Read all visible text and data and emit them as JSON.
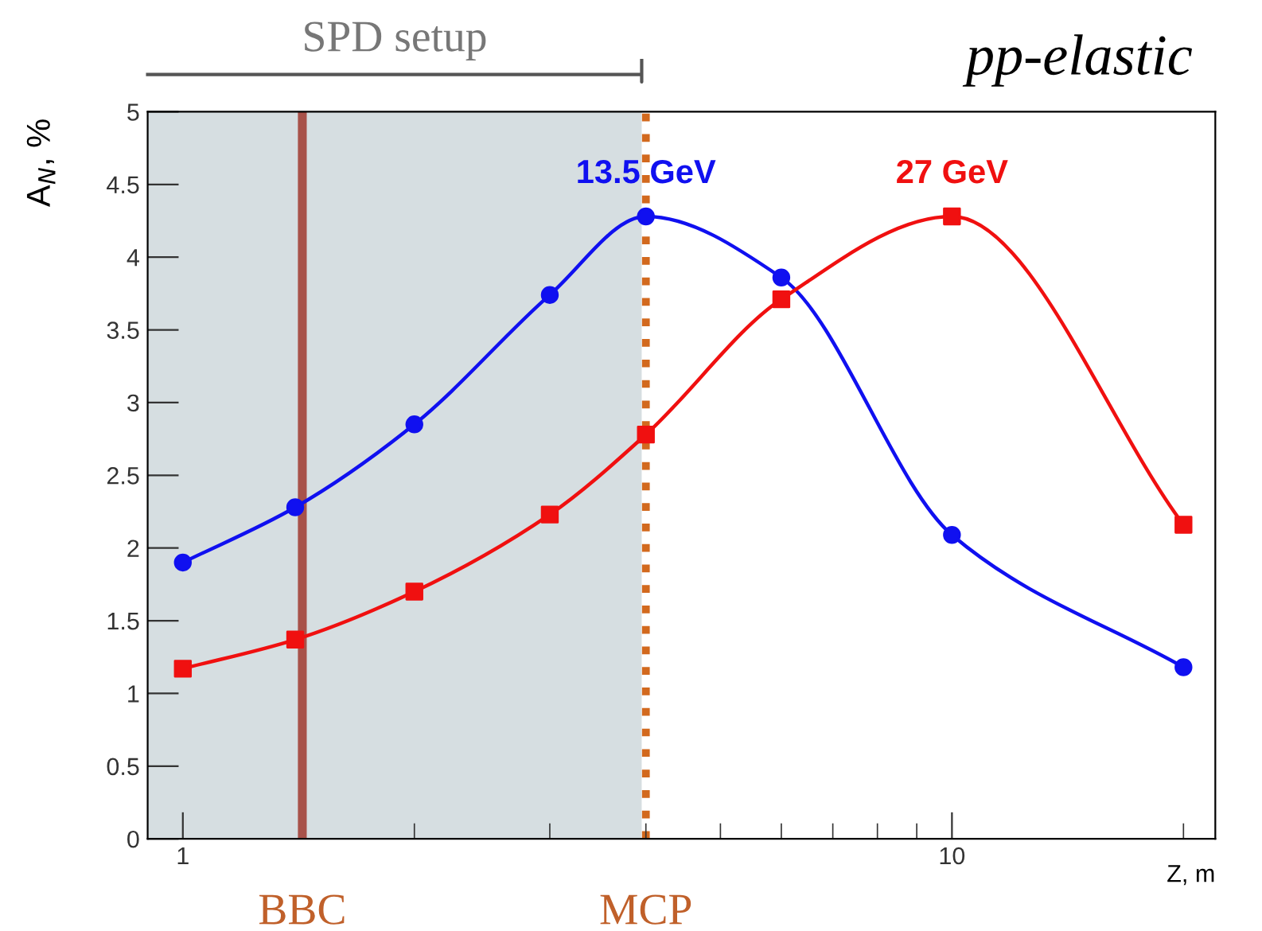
{
  "chart_data": {
    "type": "line",
    "title": "pp-elastic",
    "xlabel": "Z, m",
    "ylabel": "A$_{N}$, %",
    "log": "x",
    "xlim": [
      0.9,
      22
    ],
    "xticks": [
      1,
      {
        "value": 2,
        "label": null
      },
      {
        "value": 3,
        "label": null
      },
      {
        "value": 4,
        "label": null
      },
      {
        "value": 5,
        "label": null
      },
      {
        "value": 6,
        "label": null
      },
      {
        "value": 7,
        "label": null
      },
      {
        "value": 8,
        "label": null
      },
      {
        "value": 9,
        "label": null
      },
      10,
      {
        "value": 20,
        "label": null
      }
    ],
    "ylim": [
      0,
      5
    ],
    "yticks": [
      0,
      0.5,
      1,
      1.5,
      2,
      2.5,
      3,
      3.5,
      4,
      4.5,
      5
    ],
    "grid": false,
    "legend": false,
    "series": [
      {
        "name": "13.5 GeV",
        "color": "#1010f0",
        "marker": "circle",
        "x": [
          1,
          1.4,
          2,
          3,
          4,
          6,
          10,
          20
        ],
        "values": [
          1.9,
          2.28,
          2.85,
          3.74,
          4.28,
          3.86,
          2.09,
          1.18
        ]
      },
      {
        "name": "27 GeV",
        "color": "#f01010",
        "marker": "square",
        "x": [
          1,
          1.4,
          2,
          3,
          4,
          6,
          10,
          20
        ],
        "values": [
          1.17,
          1.37,
          1.7,
          2.23,
          2.78,
          3.71,
          4.28,
          2.16
        ]
      }
    ],
    "bands": [
      {
        "axis": "x",
        "from": 0.9,
        "to": 3.95,
        "label": "SPD setup",
        "color": "#d6dee1"
      }
    ],
    "ref_lines": [
      {
        "axis": "x",
        "value": 1.43,
        "label": "BBC",
        "color": "#a8524a",
        "line_style": "solid"
      },
      {
        "axis": "x",
        "value": 4,
        "label": "MCP",
        "color": "#d2691e",
        "line_style": "dotted"
      }
    ]
  }
}
